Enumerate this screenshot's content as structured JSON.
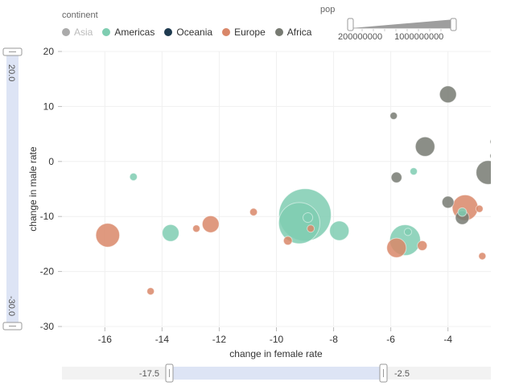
{
  "legend": {
    "title": "continent",
    "items": [
      {
        "label": "Asia",
        "color": "#aaaaaa",
        "active": false
      },
      {
        "label": "Americas",
        "color": "#7fcdb1",
        "active": true
      },
      {
        "label": "Oceania",
        "color": "#1e3a4f",
        "active": true
      },
      {
        "label": "Europe",
        "color": "#d98769",
        "active": true
      },
      {
        "label": "Africa",
        "color": "#777a72",
        "active": true
      }
    ]
  },
  "size_legend": {
    "title": "pop",
    "ticks": [
      "200000000",
      "1000000000"
    ]
  },
  "x_slider": {
    "min_label": "-17.5",
    "max_label": "-2.5",
    "range": [
      -17.5,
      -2.5
    ]
  },
  "y_slider": {
    "top_label": "20.0",
    "bottom_label": "-30.0",
    "range": [
      -30,
      20
    ]
  },
  "chart_data": {
    "type": "scatter",
    "xlabel": "change in female rate",
    "ylabel": "change in male rate",
    "xlim": [
      -17.5,
      -2.5
    ],
    "ylim": [
      -30,
      20
    ],
    "x_ticks": [
      -16,
      -14,
      -12,
      -10,
      -8,
      -6,
      -4
    ],
    "y_ticks": [
      20,
      10,
      0,
      -10,
      -20,
      -30
    ],
    "size_by": "pop",
    "series": [
      {
        "name": "Americas",
        "color": "#7fcdb1",
        "points": [
          {
            "x": -15.0,
            "y": -2.8,
            "pop": 6000000
          },
          {
            "x": -13.7,
            "y": -13.0,
            "pop": 30000000
          },
          {
            "x": -9.0,
            "y": -9.7,
            "pop": 290000000
          },
          {
            "x": -9.2,
            "y": -11.2,
            "pop": 180000000
          },
          {
            "x": -7.8,
            "y": -12.6,
            "pop": 40000000
          },
          {
            "x": -5.5,
            "y": -14.3,
            "pop": 100000000
          },
          {
            "x": -5.2,
            "y": -1.8,
            "pop": 5000000
          },
          {
            "x": -5.4,
            "y": -12.8,
            "pop": 5000000
          },
          {
            "x": -3.5,
            "y": -9.2,
            "pop": 8000000
          },
          {
            "x": -8.9,
            "y": -10.2,
            "pop": 10000000
          }
        ]
      },
      {
        "name": "Europe",
        "color": "#d98769",
        "points": [
          {
            "x": -15.9,
            "y": -13.4,
            "pop": 60000000
          },
          {
            "x": -14.4,
            "y": -23.6,
            "pop": 4000000
          },
          {
            "x": -12.8,
            "y": -12.2,
            "pop": 5000000
          },
          {
            "x": -12.3,
            "y": -11.4,
            "pop": 30000000
          },
          {
            "x": -10.8,
            "y": -9.2,
            "pop": 6000000
          },
          {
            "x": -9.6,
            "y": -14.4,
            "pop": 8000000
          },
          {
            "x": -8.8,
            "y": -12.2,
            "pop": 5000000
          },
          {
            "x": -5.8,
            "y": -15.7,
            "pop": 40000000
          },
          {
            "x": -4.9,
            "y": -15.3,
            "pop": 10000000
          },
          {
            "x": -3.4,
            "y": -8.4,
            "pop": 70000000
          },
          {
            "x": -2.9,
            "y": -8.6,
            "pop": 4000000
          },
          {
            "x": -2.8,
            "y": -17.2,
            "pop": 4000000
          }
        ]
      },
      {
        "name": "Africa",
        "color": "#777a72",
        "points": [
          {
            "x": -5.9,
            "y": 8.3,
            "pop": 5000000
          },
          {
            "x": -4.0,
            "y": 12.2,
            "pop": 30000000
          },
          {
            "x": -4.8,
            "y": 2.7,
            "pop": 40000000
          },
          {
            "x": -5.8,
            "y": -2.9,
            "pop": 12000000
          },
          {
            "x": -4.0,
            "y": -7.4,
            "pop": 15000000
          },
          {
            "x": -3.5,
            "y": -10.2,
            "pop": 20000000
          },
          {
            "x": -2.6,
            "y": -2.0,
            "pop": 60000000
          },
          {
            "x": -2.4,
            "y": 1.0,
            "pop": 6000000
          },
          {
            "x": -2.4,
            "y": 3.6,
            "pop": 4000000
          }
        ]
      }
    ]
  }
}
